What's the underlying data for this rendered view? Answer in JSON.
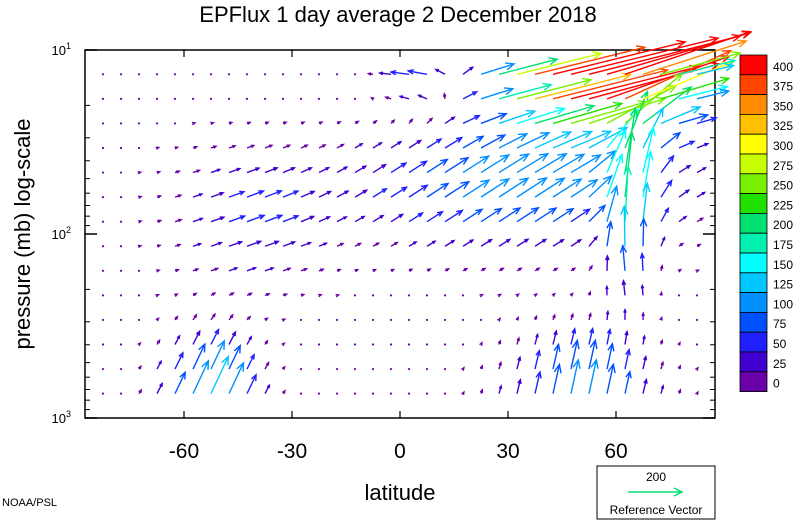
{
  "chart_data": {
    "type": "vector-field",
    "title": "EPFlux  1 day average  2 December 2018",
    "xlabel": "latitude",
    "ylabel": "pressure (mb)  log-scale",
    "x_ticks": [
      -60,
      -30,
      0,
      30,
      60
    ],
    "x_tick_labels": [
      "-60",
      "-30",
      "0",
      "30",
      "60"
    ],
    "xlim": [
      -87.5,
      87.5
    ],
    "y_scale": "log",
    "ylim": [
      1000,
      10
    ],
    "y_ticks": [
      {
        "value": 10,
        "base": "10",
        "exp": "1"
      },
      {
        "value": 100,
        "base": "10",
        "exp": "2"
      },
      {
        "value": 1000,
        "base": "10",
        "exp": "3"
      }
    ],
    "colorbar": {
      "labels": [
        "400",
        "375",
        "350",
        "325",
        "300",
        "275",
        "250",
        "225",
        "200",
        "175",
        "150",
        "125",
        "100",
        "75",
        "50",
        "25",
        "0"
      ],
      "colors": [
        "#ff0000",
        "#ff4500",
        "#ff8c00",
        "#ffc000",
        "#ffff00",
        "#c8ff00",
        "#78f000",
        "#20e000",
        "#00e070",
        "#00f0b0",
        "#00ffff",
        "#00c8ff",
        "#0090ff",
        "#0050ff",
        "#2020ff",
        "#4000d0",
        "#6a00a8"
      ]
    },
    "reference_vector": {
      "value": "200",
      "label": "Reference Vector",
      "color": "#00e070"
    },
    "credit": "NOAA/PSL"
  }
}
